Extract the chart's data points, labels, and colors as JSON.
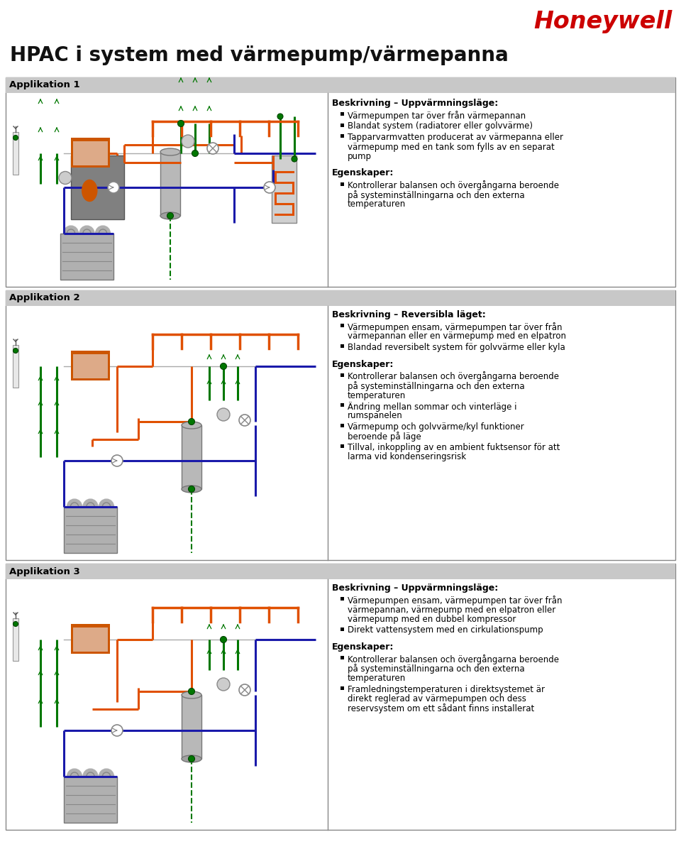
{
  "title": "HPAC i system med värmepump/värmepanna",
  "logo_text": "Honeywell",
  "logo_color": "#cc0000",
  "background_color": "#ffffff",
  "section_header_bg": "#c8c8c8",
  "section_border_color": "#555555",
  "text_color": "#000000",
  "app_labels": [
    "Applikation 1",
    "Applikation 2",
    "Applikation 3"
  ],
  "app1_title": "Beskrivning – Uppvärmningsläge:",
  "app1_bullets": [
    "Värmepumpen tar över från värmepannan",
    "Blandat system (radiatorer eller golvvärme)",
    "Tapparvarmvatten producerat av värmepanna eller\nvärmepump med en tank som fylls av en separat\npump"
  ],
  "app1_prop_title": "Egenskaper:",
  "app1_props": [
    "Kontrollerar balansen och övergångarna beroende\npå systeminställningarna och den externa\ntemperaturen"
  ],
  "app2_title": "Beskrivning – Reversibla läget:",
  "app2_bullets": [
    "Värmepumpen ensam, värmepumpen tar över från\nvärmepannan eller en värmepump med en elpatron",
    "Blandad reversibelt system för golvvärme eller kyla"
  ],
  "app2_prop_title": "Egenskaper:",
  "app2_props": [
    "Kontrollerar balansen och övergångarna beroende\npå systeminställningarna och den externa\ntemperaturen",
    "Ändring mellan sommar och vinterläge i\nrumspanelen",
    "Värmepump och golvvärme/kyl funktioner\nberoende på läge",
    "Tillval, inkoppling av en ambient fuktsensor för att\nlarma vid kondenseringsrisk"
  ],
  "app3_title": "Beskrivning – Uppvärmningsläge:",
  "app3_bullets": [
    "Värmepumpen ensam, värmepumpen tar över från\nvärmepannan, värmepump med en elpatron eller\nvärmepump med en dubbel kompressor",
    "Direkt vattensystem med en cirkulationspump"
  ],
  "app3_prop_title": "Egenskaper:",
  "app3_props": [
    "Kontrollerar balansen och övergångarna beroende\npå systeminställningarna och den externa\ntemperaturen",
    "Framledningstemperaturen i direktsystemet är\ndirekt reglerad av värmepumpen och dess\nreservsystem om ett sådant finns installerat"
  ],
  "orange_color": "#e05000",
  "blue_color": "#1a1aaa",
  "green_color": "#007700",
  "red_color": "#cc0000",
  "gray_light": "#b8b8b8",
  "gray_mid": "#888888",
  "gray_dark": "#606060",
  "panel_orange": "#cc5500"
}
